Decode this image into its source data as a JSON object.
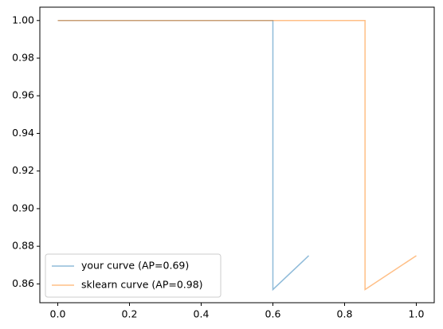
{
  "chart_data": {
    "type": "line",
    "series": [
      {
        "name": "your curve (AP=0.69)",
        "color": "#1f77b4",
        "x": [
          0,
          0.6,
          0.6,
          0.7
        ],
        "values": [
          1.0,
          1.0,
          0.857,
          0.875
        ]
      },
      {
        "name": "sklearn curve (AP=0.98)",
        "color": "#ff7f0e",
        "x": [
          0,
          0.857,
          0.857,
          1.0
        ],
        "values": [
          1.0,
          1.0,
          0.857,
          0.875
        ]
      }
    ],
    "xlim": [
      -0.05,
      1.05
    ],
    "xticks": [
      {
        "value": 0,
        "label": "0.0"
      },
      0.2,
      0.4,
      0.6,
      0.8,
      {
        "value": 1,
        "label": "1.0"
      }
    ],
    "ylim": [
      0.85,
      1.0071
    ],
    "yticks": [
      0.86,
      0.88,
      {
        "value": 0.9,
        "label": "0.90"
      },
      0.92,
      0.94,
      0.96,
      0.98,
      {
        "value": 1,
        "label": "1.00"
      }
    ],
    "line_alpha": 0.5,
    "legend": "lower left"
  }
}
